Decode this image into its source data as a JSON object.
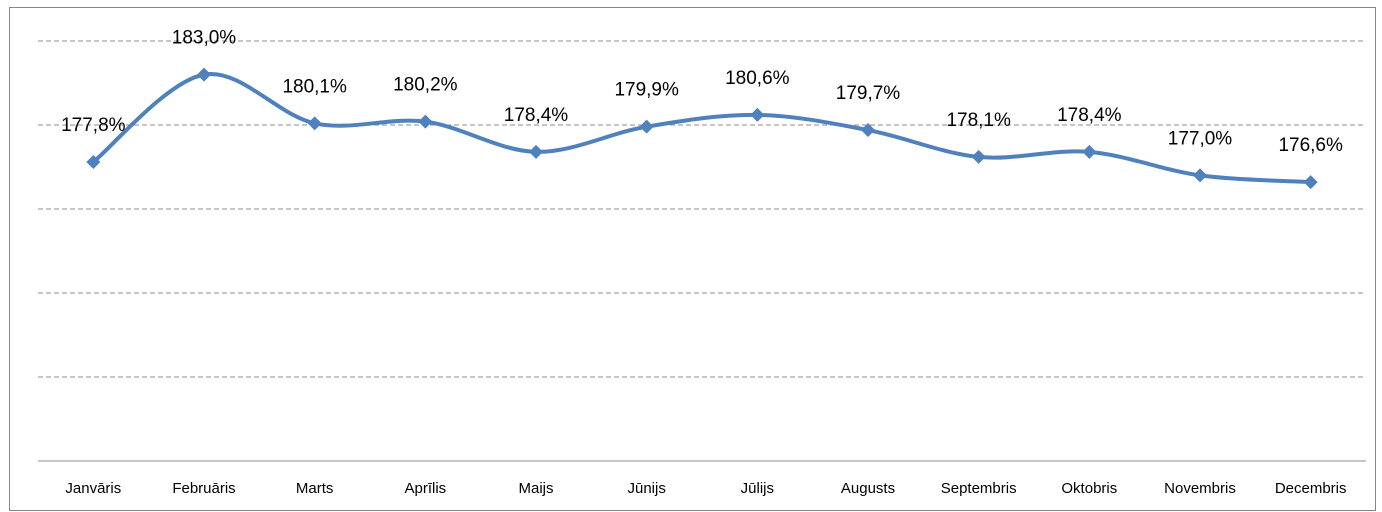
{
  "chart_data": {
    "type": "line",
    "categories": [
      "Janvāris",
      "Februāris",
      "Marts",
      "Aprīlis",
      "Maijs",
      "Jūnijs",
      "Jūlijs",
      "Augusts",
      "Septembris",
      "Oktobris",
      "Novembris",
      "Decembris"
    ],
    "values": [
      177.8,
      183.0,
      180.1,
      180.2,
      178.4,
      179.9,
      180.6,
      179.7,
      178.1,
      178.4,
      177.0,
      176.6
    ],
    "value_labels": [
      "177,8%",
      "183,0%",
      "180,1%",
      "180,2%",
      "178,4%",
      "179,9%",
      "180,6%",
      "179,7%",
      "178,1%",
      "178,4%",
      "177,0%",
      "176,6%"
    ],
    "color": "#4f81bd",
    "ylim": [
      160,
      185
    ],
    "yticks": [
      160,
      165,
      170,
      175,
      180,
      185
    ],
    "grid": true,
    "smooth": true
  }
}
